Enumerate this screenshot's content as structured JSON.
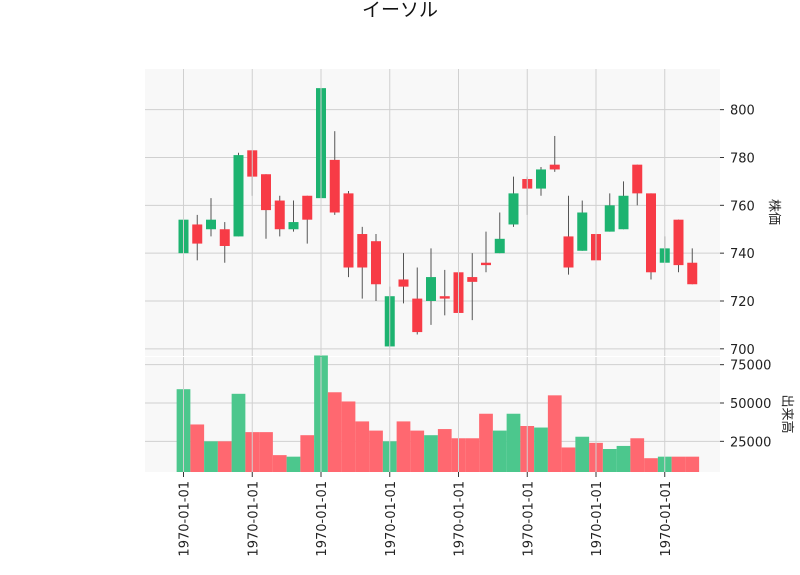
{
  "chart_data": {
    "type": "candlestick",
    "title": "イーソル",
    "price_axis_label": "株価",
    "volume_axis_label": "出来高",
    "price_ylim": [
      697,
      817
    ],
    "price_ticks": [
      "700",
      "720",
      "740",
      "760",
      "780",
      "800"
    ],
    "volume_ylim": [
      5000,
      80000
    ],
    "volume_ticks": [
      "25000",
      "50000",
      "75000"
    ],
    "x_ticks": [
      "1970-01-01",
      "1970-01-01",
      "1970-01-01",
      "1970-01-01",
      "1970-01-01",
      "1970-01-01",
      "1970-01-01",
      "1970-01-01"
    ],
    "x_tick_index": [
      0,
      5,
      10,
      15,
      20,
      25,
      30,
      35
    ],
    "up_color": "#1db370",
    "down_color": "#f73b46",
    "up_volume_color": "#4cc78d",
    "down_volume_color": "#ff6870",
    "candles": [
      {
        "open": 740,
        "high": 761,
        "low": 740,
        "close": 754,
        "volume": 59000
      },
      {
        "open": 752,
        "high": 756,
        "low": 737,
        "close": 744,
        "volume": 36000
      },
      {
        "open": 750,
        "high": 763,
        "low": 747,
        "close": 754,
        "volume": 25000
      },
      {
        "open": 750,
        "high": 753,
        "low": 736,
        "close": 743,
        "volume": 25000
      },
      {
        "open": 747,
        "high": 782,
        "low": 747,
        "close": 781,
        "volume": 56000
      },
      {
        "open": 783,
        "high": 783,
        "low": 764,
        "close": 772,
        "volume": 31000
      },
      {
        "open": 773,
        "high": 773,
        "low": 746,
        "close": 758,
        "volume": 31000
      },
      {
        "open": 762,
        "high": 764,
        "low": 747,
        "close": 750,
        "volume": 16000
      },
      {
        "open": 750,
        "high": 762,
        "low": 749,
        "close": 753,
        "volume": 15000
      },
      {
        "open": 764,
        "high": 764,
        "low": 744,
        "close": 754,
        "volume": 29000
      },
      {
        "open": 763,
        "high": 812,
        "low": 758,
        "close": 809,
        "volume": 81000
      },
      {
        "open": 779,
        "high": 791,
        "low": 756,
        "close": 757,
        "volume": 57000
      },
      {
        "open": 765,
        "high": 766,
        "low": 730,
        "close": 734,
        "volume": 51000
      },
      {
        "open": 748,
        "high": 751,
        "low": 721,
        "close": 734,
        "volume": 38000
      },
      {
        "open": 745,
        "high": 748,
        "low": 720,
        "close": 727,
        "volume": 32000
      },
      {
        "open": 701,
        "high": 726,
        "low": 701,
        "close": 722,
        "volume": 25000
      },
      {
        "open": 729,
        "high": 740,
        "low": 719,
        "close": 726,
        "volume": 38000
      },
      {
        "open": 721,
        "high": 734,
        "low": 706,
        "close": 707,
        "volume": 32000
      },
      {
        "open": 720,
        "high": 742,
        "low": 710,
        "close": 730,
        "volume": 29000
      },
      {
        "open": 722,
        "high": 733,
        "low": 714,
        "close": 721,
        "volume": 33000
      },
      {
        "open": 732,
        "high": 735,
        "low": 701,
        "close": 715,
        "volume": 27000
      },
      {
        "open": 730,
        "high": 740,
        "low": 712,
        "close": 728,
        "volume": 27000
      },
      {
        "open": 736,
        "high": 749,
        "low": 732,
        "close": 735,
        "volume": 43000
      },
      {
        "open": 740,
        "high": 757,
        "low": 740,
        "close": 746,
        "volume": 32000
      },
      {
        "open": 752,
        "high": 772,
        "low": 751,
        "close": 765,
        "volume": 43000
      },
      {
        "open": 771,
        "high": 772,
        "low": 756,
        "close": 767,
        "volume": 35000
      },
      {
        "open": 767,
        "high": 776,
        "low": 764,
        "close": 775,
        "volume": 34000
      },
      {
        "open": 777,
        "high": 789,
        "low": 774,
        "close": 775,
        "volume": 55000
      },
      {
        "open": 747,
        "high": 764,
        "low": 731,
        "close": 734,
        "volume": 21000
      },
      {
        "open": 741,
        "high": 762,
        "low": 741,
        "close": 757,
        "volume": 28000
      },
      {
        "open": 748,
        "high": 752,
        "low": 734,
        "close": 737,
        "volume": 24000
      },
      {
        "open": 749,
        "high": 765,
        "low": 749,
        "close": 760,
        "volume": 20000
      },
      {
        "open": 750,
        "high": 770,
        "low": 750,
        "close": 764,
        "volume": 22000
      },
      {
        "open": 777,
        "high": 777,
        "low": 760,
        "close": 765,
        "volume": 27000
      },
      {
        "open": 765,
        "high": 765,
        "low": 729,
        "close": 732,
        "volume": 14000
      },
      {
        "open": 736,
        "high": 747,
        "low": 736,
        "close": 742,
        "volume": 15000
      },
      {
        "open": 754,
        "high": 754,
        "low": 732,
        "close": 735,
        "volume": 15000
      },
      {
        "open": 736,
        "high": 742,
        "low": 727,
        "close": 727,
        "volume": 15000
      }
    ]
  }
}
